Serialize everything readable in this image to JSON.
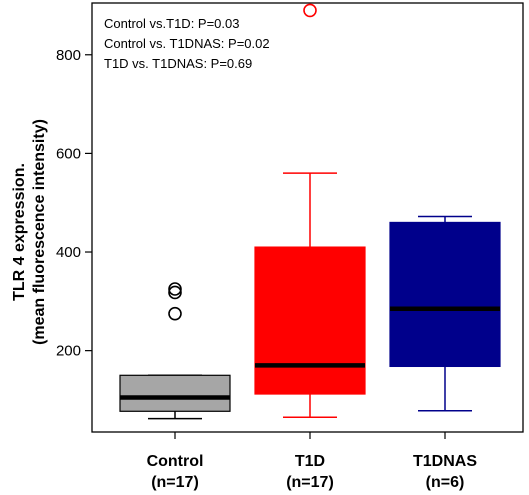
{
  "chart_data": {
    "type": "boxplot",
    "ylabel_line1": "TLR 4 expression.",
    "ylabel_line2": "(mean fluorescence intensity)",
    "ylim": [
      35,
      905
    ],
    "yticks": [
      200,
      400,
      600,
      800
    ],
    "ytick_labels": [
      "200",
      "400",
      "600",
      "800"
    ],
    "annotations": [
      "Control vs.T1D: P=0.03",
      "Control vs. T1DNAS: P=0.02",
      "T1D vs. T1DNAS: P=0.69"
    ],
    "groups": [
      {
        "label": "Control",
        "n_label": "(n=17)",
        "color": "#a6a6a6",
        "edge": "#000000",
        "whisker_low": 62,
        "q1": 77,
        "median": 105,
        "q3": 150,
        "whisker_high": 150,
        "outliers": [
          275,
          318,
          325
        ]
      },
      {
        "label": "T1D",
        "n_label": "(n=17)",
        "color": "#ff0000",
        "edge": "#ff0000",
        "whisker_low": 65,
        "q1": 112,
        "median": 170,
        "q3": 410,
        "whisker_high": 560,
        "outliers": [
          890
        ]
      },
      {
        "label": "T1DNAS",
        "n_label": "(n=6)",
        "color": "#00008b",
        "edge": "#00008b",
        "whisker_low": 78,
        "q1": 168,
        "median": 285,
        "q3": 460,
        "whisker_high": 472,
        "outliers": []
      }
    ]
  }
}
